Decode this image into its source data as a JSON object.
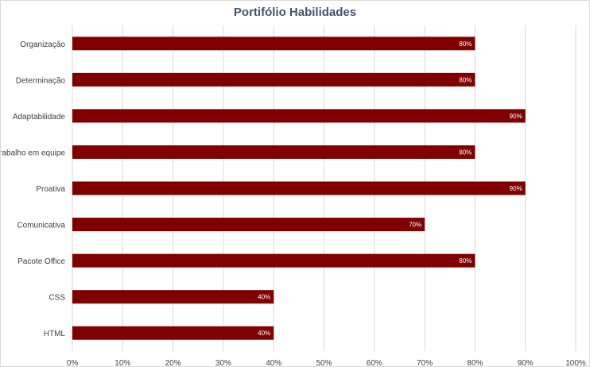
{
  "chart_data": {
    "type": "bar",
    "orientation": "horizontal",
    "title": "Portifólio Habilidades",
    "categories": [
      "Organização",
      "Determinação",
      "Adaptabilidade",
      "Trabalho em equipe",
      "Proativa",
      "Comunicativa",
      "Pacote Office",
      "CSS",
      "HTML"
    ],
    "values": [
      80,
      80,
      90,
      80,
      90,
      70,
      80,
      40,
      40
    ],
    "data_labels": [
      "80%",
      "80%",
      "90%",
      "80%",
      "90%",
      "70%",
      "80%",
      "40%",
      "40%"
    ],
    "xlim": [
      0,
      100
    ],
    "x_ticks": [
      0,
      10,
      20,
      30,
      40,
      50,
      60,
      70,
      80,
      90,
      100
    ],
    "x_tick_labels": [
      "0%",
      "10%",
      "20%",
      "30%",
      "40%",
      "50%",
      "60%",
      "70%",
      "80%",
      "90%",
      "100%"
    ],
    "grid": true,
    "legend": "none",
    "bar_color": "#800000",
    "grid_color": "#d9d9d9"
  }
}
